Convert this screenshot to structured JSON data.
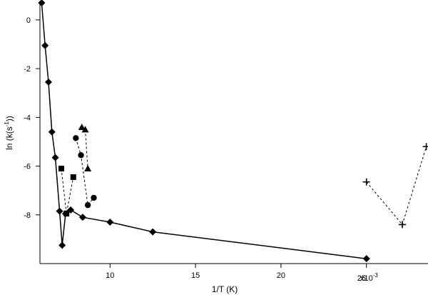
{
  "chart_data": {
    "type": "scatter",
    "xlabel": "1/T (K)",
    "ylabel_main": "ln (k(s",
    "ylabel_sup": "-1",
    "ylabel_end": "))",
    "x_exponent_label": "x10",
    "x_exponent_sup": "-3",
    "xlim": [
      5.9,
      28.6
    ],
    "ylim": [
      -10.0,
      0.7
    ],
    "xticks": [
      {
        "value": 10,
        "label": "10"
      },
      {
        "value": 15,
        "label": "15"
      },
      {
        "value": 20,
        "label": "20"
      },
      {
        "value": 25,
        "label": "25"
      }
    ],
    "yticks": [
      {
        "value": 0,
        "label": "0"
      },
      {
        "value": -2,
        "label": "-2"
      },
      {
        "value": -4,
        "label": "-4"
      },
      {
        "value": -6,
        "label": "-6"
      },
      {
        "value": -8,
        "label": "-8"
      }
    ],
    "grid": false,
    "legend": "none",
    "series": [
      {
        "marker": "diamond",
        "line": "solid",
        "color": "#000000",
        "points": [
          [
            6.0,
            0.7
          ],
          [
            6.2,
            -1.05
          ],
          [
            6.4,
            -2.55
          ],
          [
            6.6,
            -4.6
          ],
          [
            6.8,
            -5.65
          ],
          [
            7.05,
            -7.85
          ],
          [
            7.2,
            -9.25
          ],
          [
            7.4,
            -7.95
          ],
          [
            7.7,
            -7.8
          ],
          [
            8.4,
            -8.1
          ],
          [
            10.0,
            -8.3
          ],
          [
            12.5,
            -8.7
          ],
          [
            25.0,
            -9.8
          ]
        ]
      },
      {
        "marker": "square",
        "line": "dashed",
        "color": "#000000",
        "points": [
          [
            7.15,
            -6.1
          ],
          [
            7.45,
            -7.95
          ],
          [
            7.85,
            -6.45
          ]
        ]
      },
      {
        "marker": "circle",
        "line": "dashed",
        "color": "#000000",
        "points": [
          [
            8.0,
            -4.85
          ],
          [
            8.3,
            -5.55
          ],
          [
            8.7,
            -7.6
          ],
          [
            9.05,
            -7.3
          ]
        ]
      },
      {
        "marker": "triangle",
        "line": "dashed",
        "color": "#000000",
        "points": [
          [
            8.35,
            -4.4
          ],
          [
            8.55,
            -4.5
          ],
          [
            8.7,
            -6.1
          ]
        ]
      },
      {
        "marker": "plus",
        "line": "dashed",
        "color": "#000000",
        "points": [
          [
            25.0,
            -6.65
          ],
          [
            27.1,
            -8.4
          ],
          [
            28.5,
            -5.2
          ]
        ]
      }
    ]
  }
}
